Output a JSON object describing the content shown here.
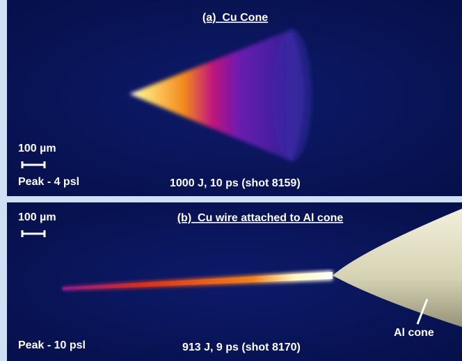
{
  "panels": [
    {
      "title": "(a)  Cu Cone",
      "scale_label": "100 µm",
      "peak": "Peak - 4 psl",
      "shot": "1000 J, 10 ps (shot 8159)"
    },
    {
      "title": "(b)  Cu wire attached to Al cone",
      "scale_label": "100 µm",
      "peak": "Peak - 10 psl",
      "shot": "913 J, 9 ps (shot 8170)",
      "annotation": "Al cone"
    }
  ]
}
